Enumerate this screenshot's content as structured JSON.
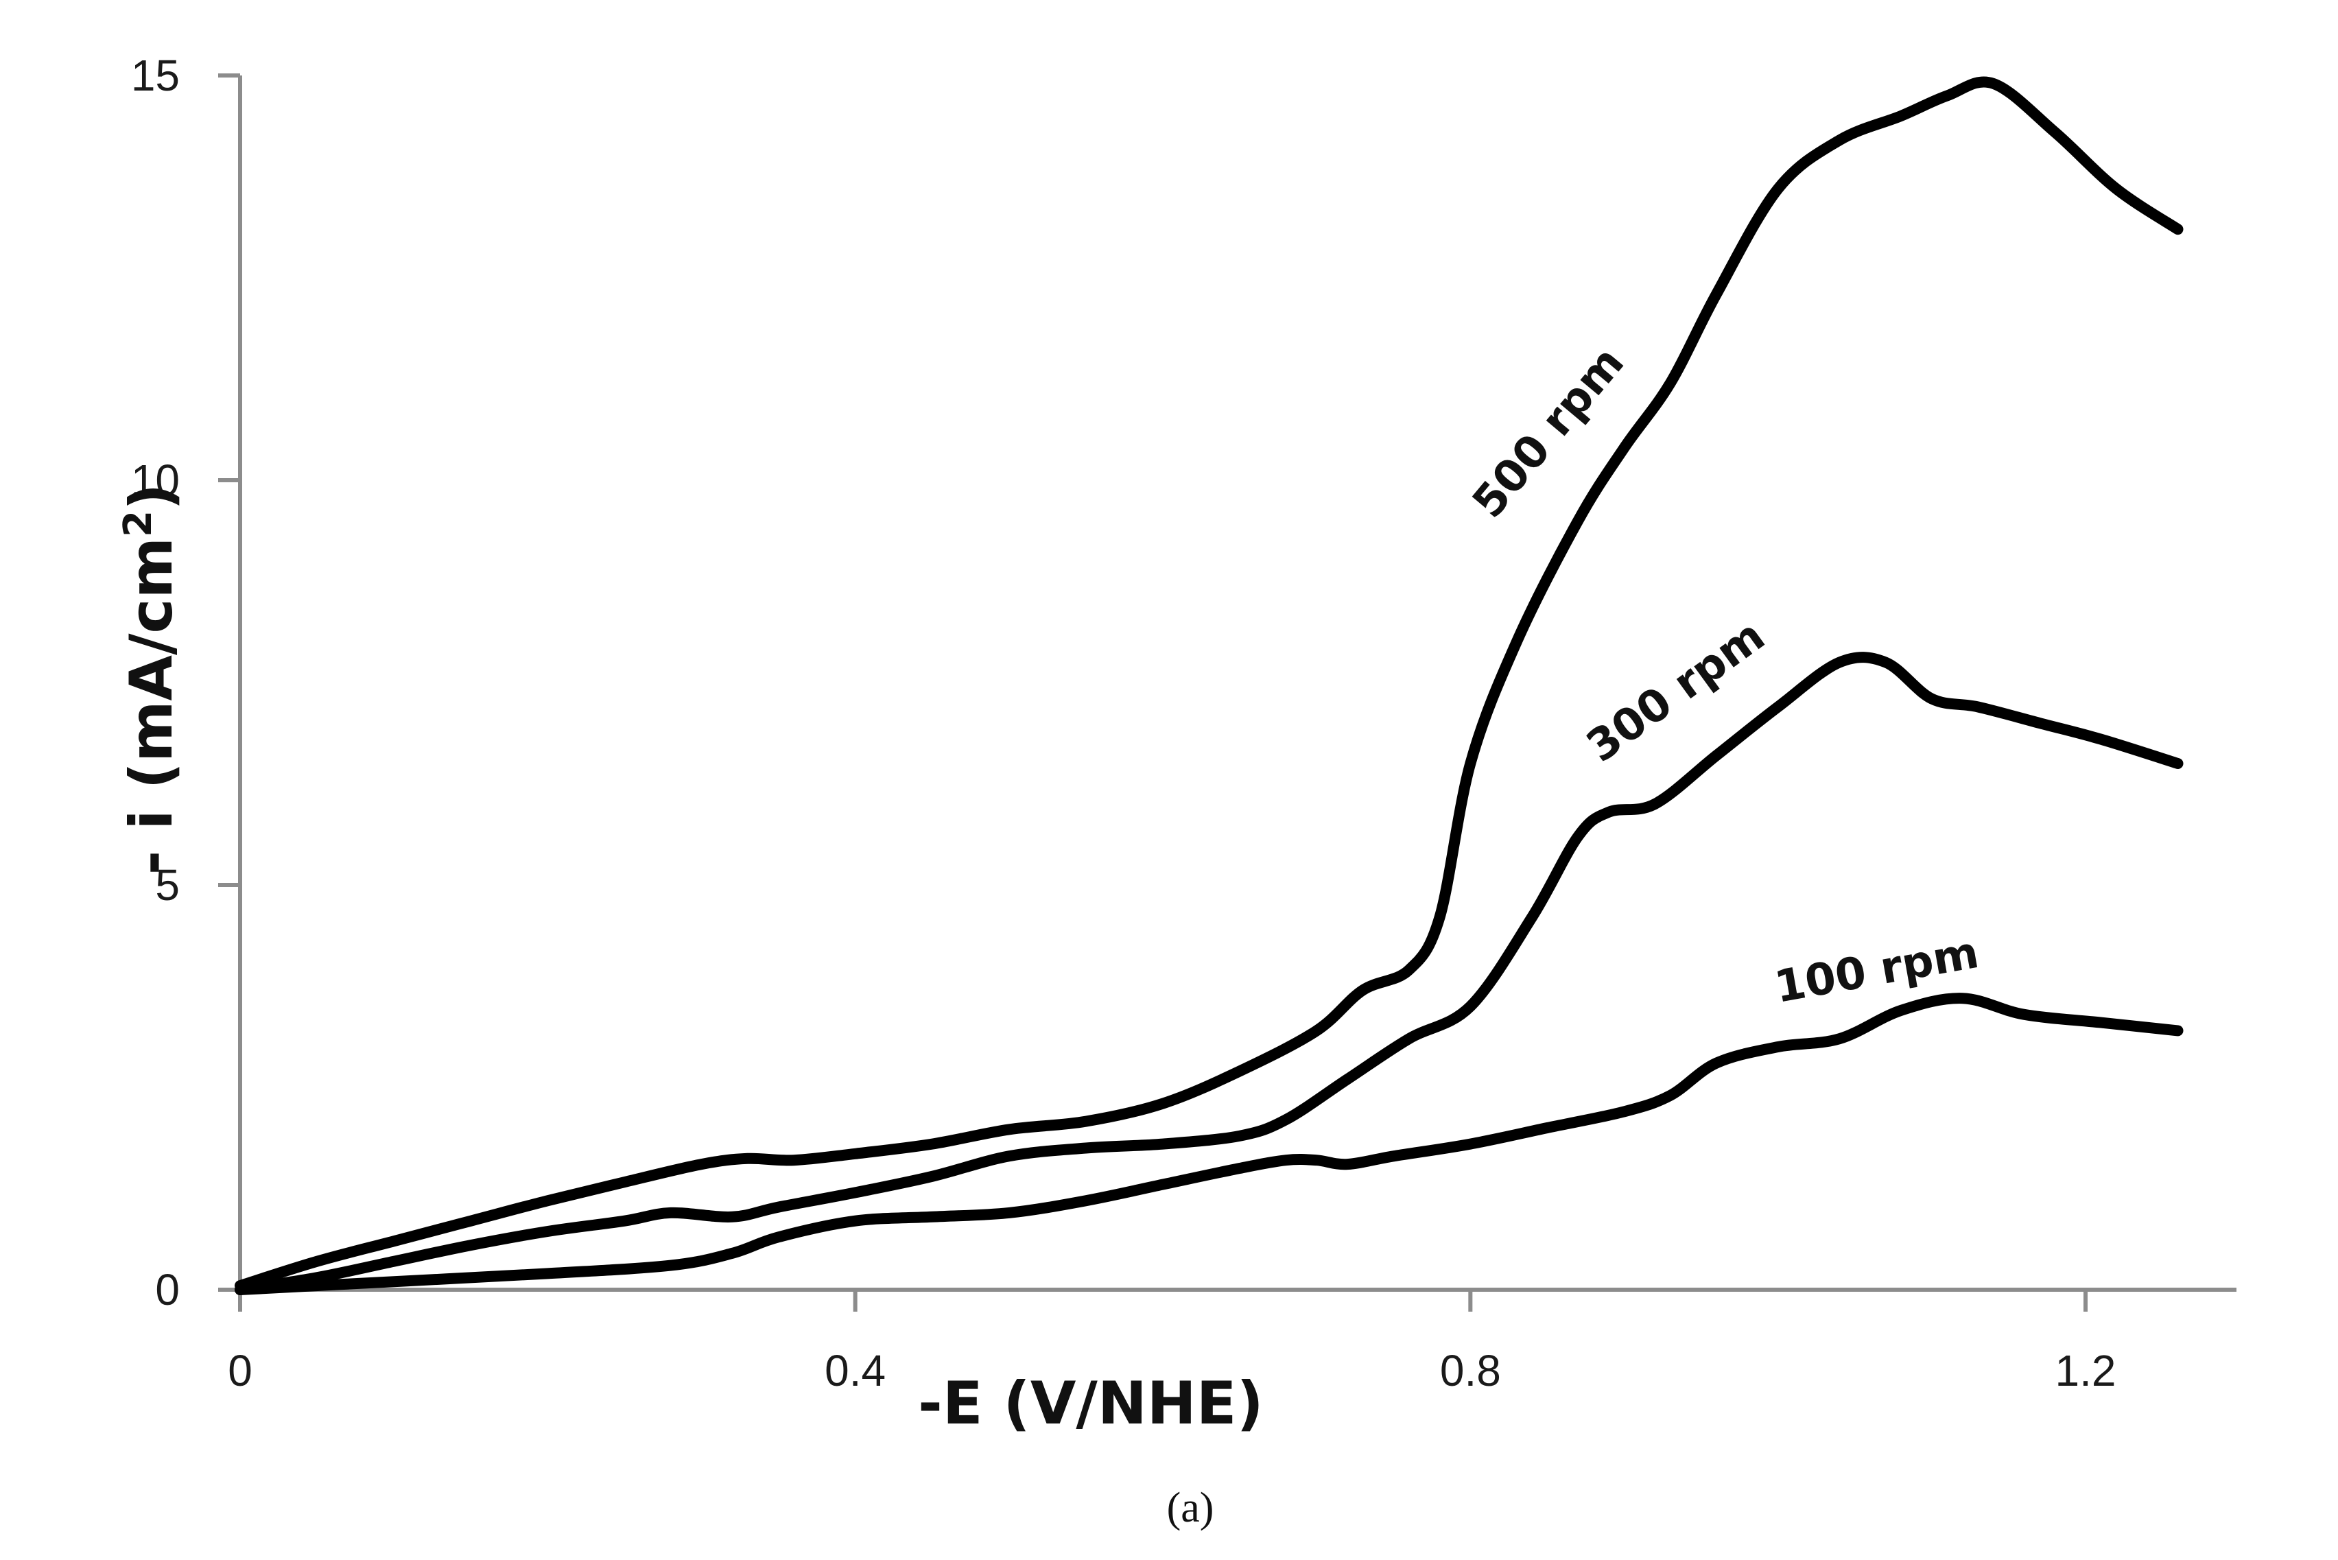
{
  "chart_data": {
    "type": "line",
    "title": "",
    "xlabel": "-E (V/NHE)",
    "ylabel_main": "- i (mA/cm",
    "ylabel_sup": "2",
    "ylabel_end": ")",
    "caption": "(a)",
    "xlim": [
      0,
      1.3
    ],
    "ylim": [
      0,
      15
    ],
    "x_ticks": [
      {
        "value": 0,
        "label": "0"
      },
      {
        "value": 0.4,
        "label": "0.4"
      },
      {
        "value": 0.8,
        "label": "0.8"
      },
      {
        "value": 1.2,
        "label": "1.2"
      }
    ],
    "y_ticks": [
      {
        "value": 0,
        "label": "0"
      },
      {
        "value": 5,
        "label": "5"
      },
      {
        "value": 10,
        "label": "10"
      },
      {
        "value": 15,
        "label": "15"
      }
    ],
    "grid": false,
    "series": [
      {
        "name": "500 rpm",
        "label": "500 rpm",
        "label_anchor": {
          "x": 0.815,
          "y": 9.5
        },
        "label_angle": -50,
        "points": [
          [
            0,
            0.05
          ],
          [
            0.05,
            0.35
          ],
          [
            0.1,
            0.6
          ],
          [
            0.15,
            0.85
          ],
          [
            0.2,
            1.1
          ],
          [
            0.25,
            1.33
          ],
          [
            0.3,
            1.55
          ],
          [
            0.33,
            1.62
          ],
          [
            0.36,
            1.6
          ],
          [
            0.4,
            1.68
          ],
          [
            0.45,
            1.8
          ],
          [
            0.5,
            1.98
          ],
          [
            0.55,
            2.08
          ],
          [
            0.6,
            2.3
          ],
          [
            0.65,
            2.7
          ],
          [
            0.7,
            3.2
          ],
          [
            0.73,
            3.7
          ],
          [
            0.76,
            3.95
          ],
          [
            0.78,
            4.6
          ],
          [
            0.8,
            6.5
          ],
          [
            0.83,
            8.0
          ],
          [
            0.87,
            9.5
          ],
          [
            0.9,
            10.4
          ],
          [
            0.93,
            11.2
          ],
          [
            0.96,
            12.3
          ],
          [
            1.0,
            13.6
          ],
          [
            1.04,
            14.2
          ],
          [
            1.08,
            14.5
          ],
          [
            1.11,
            14.75
          ],
          [
            1.14,
            14.9
          ],
          [
            1.18,
            14.3
          ],
          [
            1.22,
            13.6
          ],
          [
            1.26,
            13.1
          ]
        ]
      },
      {
        "name": "300 rpm",
        "label": "300 rpm",
        "label_anchor": {
          "x": 0.885,
          "y": 6.5
        },
        "label_angle": -36,
        "points": [
          [
            0,
            0.0
          ],
          [
            0.05,
            0.15
          ],
          [
            0.1,
            0.35
          ],
          [
            0.15,
            0.55
          ],
          [
            0.2,
            0.72
          ],
          [
            0.25,
            0.85
          ],
          [
            0.28,
            0.95
          ],
          [
            0.32,
            0.9
          ],
          [
            0.35,
            1.02
          ],
          [
            0.4,
            1.2
          ],
          [
            0.45,
            1.4
          ],
          [
            0.5,
            1.65
          ],
          [
            0.55,
            1.75
          ],
          [
            0.6,
            1.8
          ],
          [
            0.65,
            1.9
          ],
          [
            0.68,
            2.1
          ],
          [
            0.72,
            2.6
          ],
          [
            0.76,
            3.1
          ],
          [
            0.8,
            3.5
          ],
          [
            0.84,
            4.6
          ],
          [
            0.87,
            5.6
          ],
          [
            0.89,
            5.9
          ],
          [
            0.92,
            6.0
          ],
          [
            0.96,
            6.6
          ],
          [
            1.0,
            7.2
          ],
          [
            1.04,
            7.75
          ],
          [
            1.07,
            7.75
          ],
          [
            1.1,
            7.3
          ],
          [
            1.13,
            7.2
          ],
          [
            1.17,
            7.0
          ],
          [
            1.21,
            6.8
          ],
          [
            1.26,
            6.5
          ]
        ]
      },
      {
        "name": "100 rpm",
        "label": "100 rpm",
        "label_anchor": {
          "x": 1.0,
          "y": 3.55
        },
        "label_angle": -10,
        "points": [
          [
            0,
            0.0
          ],
          [
            0.1,
            0.1
          ],
          [
            0.2,
            0.2
          ],
          [
            0.28,
            0.3
          ],
          [
            0.32,
            0.45
          ],
          [
            0.35,
            0.65
          ],
          [
            0.4,
            0.85
          ],
          [
            0.45,
            0.9
          ],
          [
            0.5,
            0.95
          ],
          [
            0.55,
            1.1
          ],
          [
            0.6,
            1.3
          ],
          [
            0.65,
            1.5
          ],
          [
            0.68,
            1.6
          ],
          [
            0.7,
            1.6
          ],
          [
            0.72,
            1.55
          ],
          [
            0.75,
            1.65
          ],
          [
            0.8,
            1.8
          ],
          [
            0.85,
            2.0
          ],
          [
            0.9,
            2.2
          ],
          [
            0.93,
            2.4
          ],
          [
            0.96,
            2.8
          ],
          [
            1.0,
            3.0
          ],
          [
            1.04,
            3.1
          ],
          [
            1.08,
            3.45
          ],
          [
            1.12,
            3.6
          ],
          [
            1.16,
            3.4
          ],
          [
            1.21,
            3.3
          ],
          [
            1.26,
            3.2
          ]
        ]
      }
    ]
  }
}
